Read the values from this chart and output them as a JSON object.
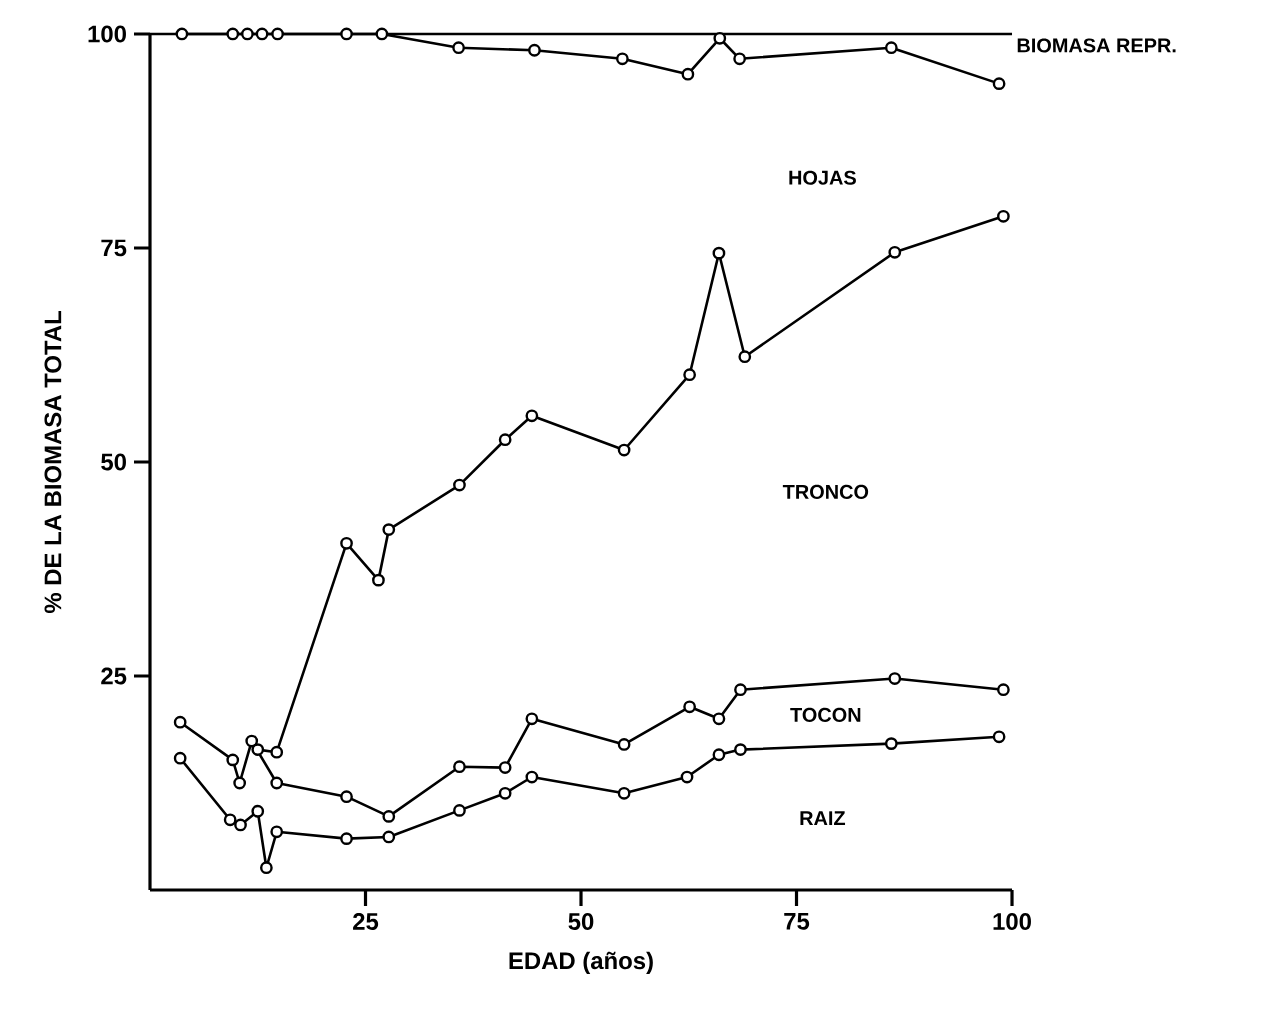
{
  "chart_data": {
    "type": "line",
    "xlabel": "EDAD (años)",
    "ylabel": "% DE LA BIOMASA TOTAL",
    "xlim": [
      0,
      100
    ],
    "ylim": [
      0,
      100
    ],
    "xticks": [
      25,
      50,
      75,
      100
    ],
    "yticks": [
      25,
      50,
      75,
      100
    ],
    "annotations": [
      "RAIZ",
      "TOCON",
      "TRONCO",
      "HOJAS",
      "BIOMASA REPR."
    ],
    "grid": false,
    "marker": "circle",
    "line_style": "solid",
    "series": [
      {
        "color": "#000000",
        "x": [
          3.5,
          9.3,
          10.5,
          12.5,
          13.5,
          14.7,
          22.8,
          27.7,
          35.9,
          41.2,
          44.3,
          55,
          62.3,
          66,
          68.5,
          86,
          98.5
        ],
        "values": [
          15.4,
          8.2,
          7.6,
          9.2,
          2.6,
          6.8,
          6.0,
          6.2,
          9.3,
          11.3,
          13.2,
          11.3,
          13.2,
          15.8,
          16.4,
          17.1,
          17.9
        ]
      },
      {
        "color": "#000000",
        "x": [
          3.5,
          9.6,
          10.4,
          11.8,
          14.7,
          22.8,
          27.7,
          35.9,
          41.2,
          44.3,
          55,
          62.6,
          66,
          68.5,
          86.4,
          99
        ],
        "values": [
          19.6,
          15.2,
          12.5,
          17.4,
          12.5,
          10.9,
          8.6,
          14.4,
          14.3,
          20.0,
          17.0,
          21.4,
          20.0,
          23.4,
          24.7,
          23.4
        ]
      },
      {
        "color": "#000000",
        "x": [
          12.5,
          14.7,
          22.8,
          26.5,
          27.7,
          35.9,
          41.2,
          44.3,
          55,
          62.6,
          66,
          69,
          86.4,
          99
        ],
        "values": [
          16.4,
          16.1,
          40.5,
          36.2,
          42.1,
          47.3,
          52.6,
          55.4,
          51.4,
          60.2,
          74.4,
          62.3,
          74.5,
          78.7
        ]
      },
      {
        "color": "#000000",
        "x": [
          3.7,
          9.6,
          11.3,
          13.0,
          14.8,
          22.8,
          26.9,
          35.8,
          44.6,
          54.8,
          62.4,
          66.1,
          68.4,
          86,
          98.5
        ],
        "values": [
          100,
          100,
          100,
          100,
          100,
          100,
          100,
          98.4,
          98.1,
          97.1,
          95.3,
          99.5,
          97.1,
          98.4,
          94.2
        ]
      },
      {
        "color": "#000000",
        "marker": "none",
        "x": [
          0,
          100
        ],
        "values": [
          100,
          100
        ]
      }
    ]
  }
}
